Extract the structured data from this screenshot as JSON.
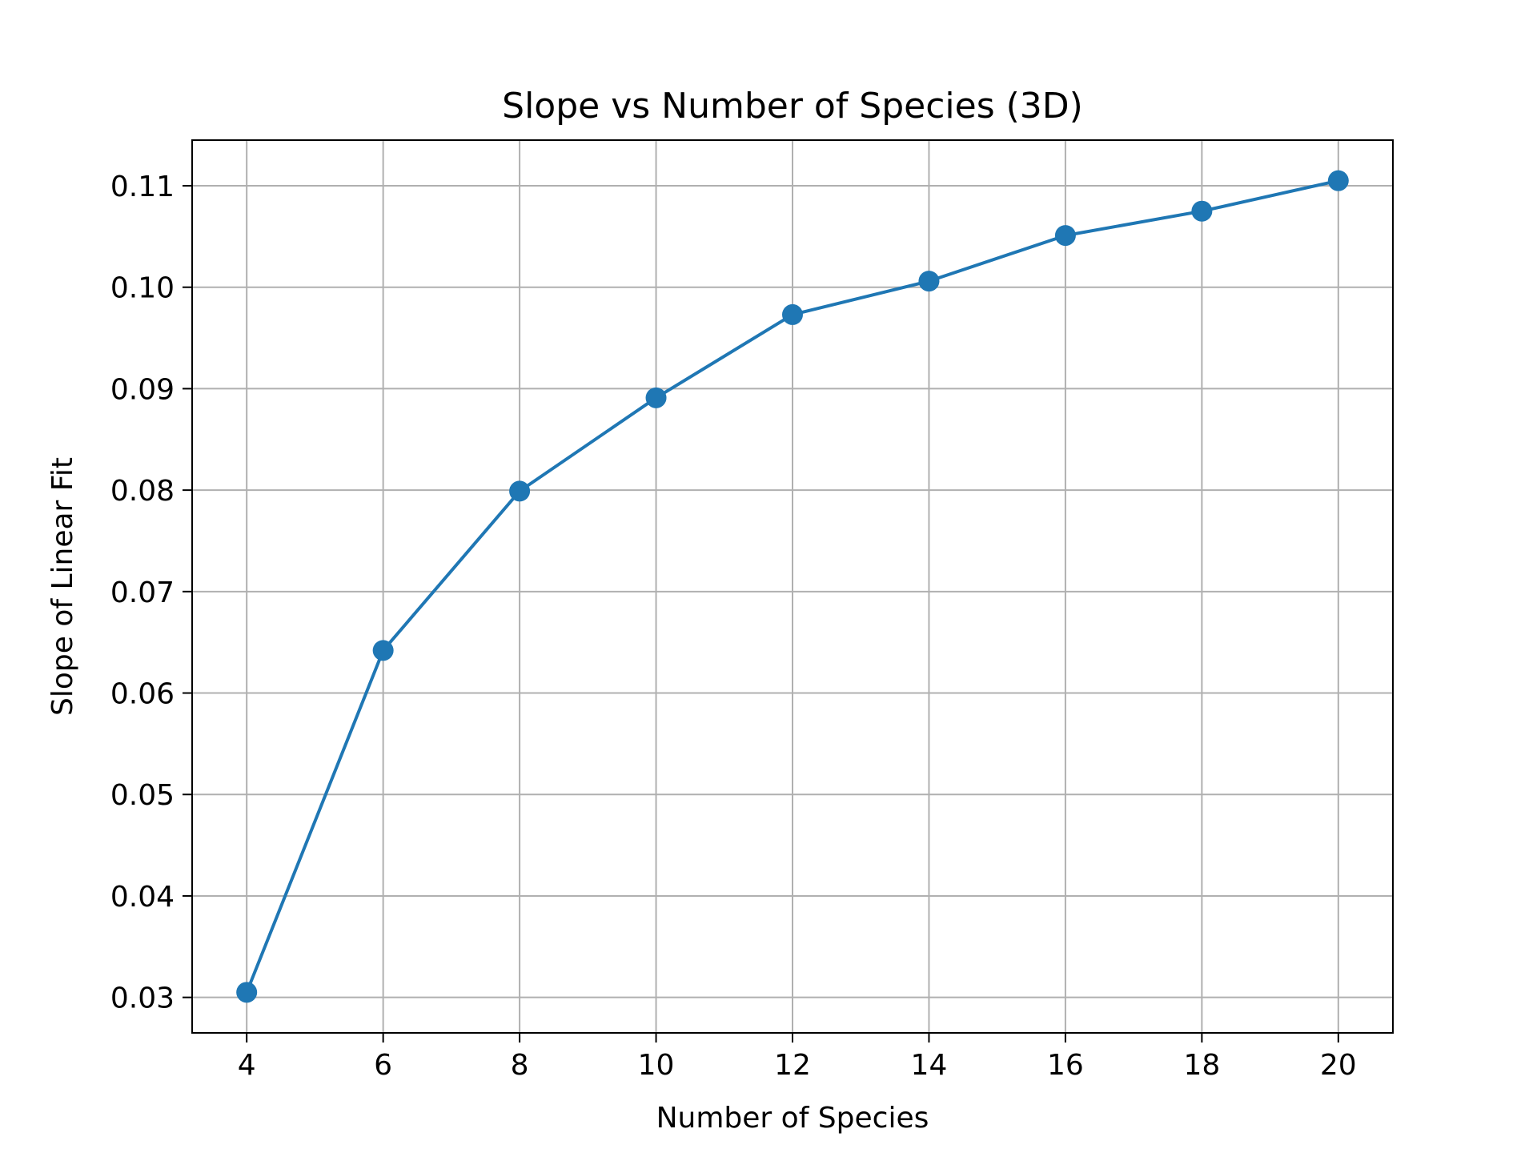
{
  "chart_data": {
    "type": "line",
    "title": "Slope vs Number of Species (3D)",
    "xlabel": "Number of Species",
    "ylabel": "Slope of Linear Fit",
    "x": [
      4,
      6,
      8,
      10,
      12,
      14,
      16,
      18,
      20
    ],
    "series": [
      {
        "values": [
          0.0305,
          0.0642,
          0.0799,
          0.0891,
          0.0973,
          0.1006,
          0.1051,
          0.1075,
          0.1105
        ],
        "color": "#1f77b4",
        "marker": "circle"
      }
    ],
    "xticks": [
      4,
      6,
      8,
      10,
      12,
      14,
      16,
      18,
      20
    ],
    "xtick_labels": [
      "4",
      "6",
      "8",
      "10",
      "12",
      "14",
      "16",
      "18",
      "20"
    ],
    "yticks": [
      0.03,
      0.04,
      0.05,
      0.06,
      0.07,
      0.08,
      0.09,
      0.1,
      0.11
    ],
    "ytick_labels": [
      "0.03",
      "0.04",
      "0.05",
      "0.06",
      "0.07",
      "0.08",
      "0.09",
      "0.10",
      "0.11"
    ],
    "xlim": [
      3.2,
      20.8
    ],
    "ylim": [
      0.0265,
      0.1145
    ],
    "grid": true,
    "legend": "none"
  }
}
